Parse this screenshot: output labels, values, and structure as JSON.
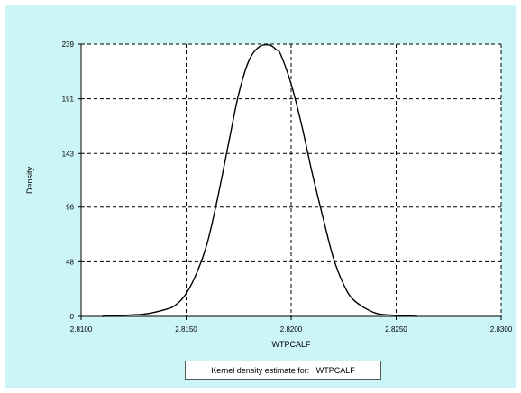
{
  "chart_data": {
    "type": "line",
    "title": "",
    "xlabel": "WTPCALF",
    "ylabel": "Density",
    "xlim": [
      2.81,
      2.83
    ],
    "ylim": [
      0,
      239
    ],
    "x_ticks": [
      "2.8100",
      "2.8150",
      "2.8200",
      "2.8250",
      "2.8300"
    ],
    "y_ticks": [
      "0",
      "48",
      "96",
      "143",
      "191",
      "239"
    ],
    "grid": true,
    "legend_position": "bottom",
    "legend": {
      "prefix": "Kernel density estimate for:",
      "series_name": "WTPCALF"
    },
    "series": [
      {
        "name": "WTPCALF",
        "color": "#000000",
        "x": [
          2.811,
          2.812,
          2.813,
          2.814,
          2.8145,
          2.815,
          2.8155,
          2.816,
          2.8165,
          2.817,
          2.8175,
          2.818,
          2.8185,
          2.819,
          2.8193,
          2.8195,
          2.82,
          2.8205,
          2.821,
          2.8215,
          2.822,
          2.8225,
          2.823,
          2.824,
          2.825,
          2.826
        ],
        "values": [
          0,
          1,
          2,
          6,
          10,
          20,
          38,
          64,
          104,
          150,
          195,
          225,
          237,
          238,
          234,
          230,
          204,
          168,
          126,
          88,
          52,
          28,
          14,
          3,
          1,
          0
        ]
      }
    ]
  },
  "colors": {
    "panel_background": "#ccf5f7",
    "plot_background": "#ffffff",
    "grid": "#000000",
    "line": "#000000"
  }
}
